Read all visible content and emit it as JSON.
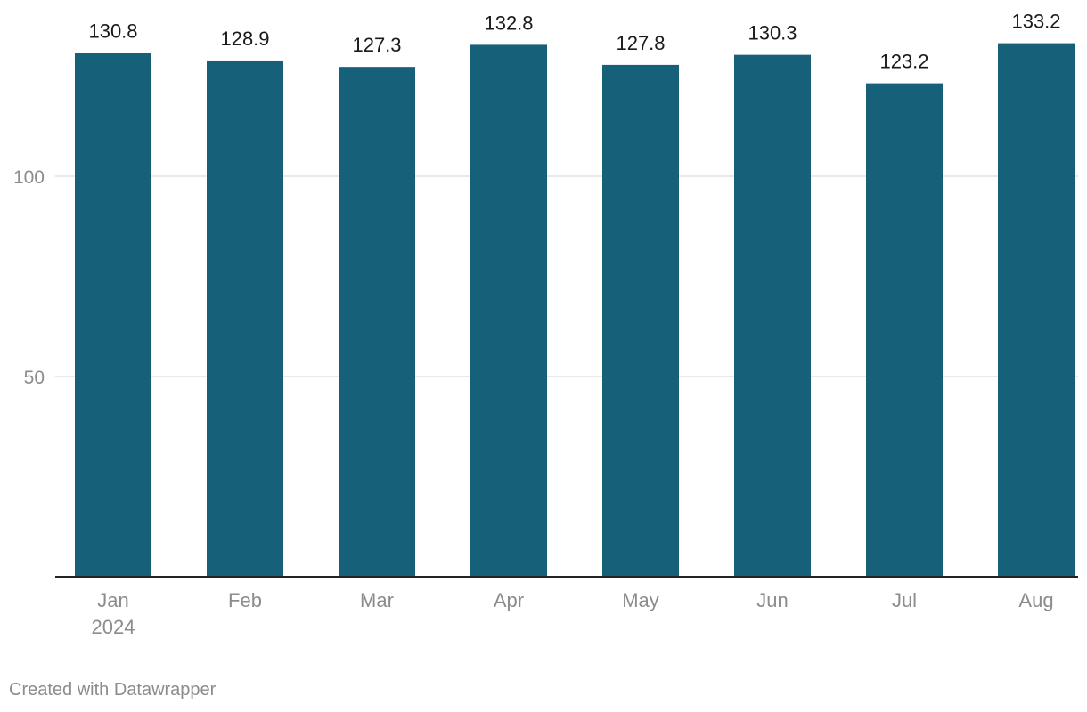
{
  "chart_data": {
    "type": "bar",
    "categories": [
      "Jan",
      "Feb",
      "Mar",
      "Apr",
      "May",
      "Jun",
      "Jul",
      "Aug"
    ],
    "category_sublabels": [
      "2024",
      "",
      "",
      "",
      "",
      "",
      "",
      ""
    ],
    "values": [
      130.8,
      128.9,
      127.3,
      132.8,
      127.8,
      130.3,
      123.2,
      133.2
    ],
    "value_labels": [
      "130.8",
      "128.9",
      "127.3",
      "132.8",
      "127.8",
      "130.3",
      "123.2",
      "133.2"
    ],
    "yticks": [
      50,
      100
    ],
    "ytick_labels": [
      "50",
      "100"
    ],
    "ylim": [
      0,
      145
    ],
    "grid": true,
    "colors": {
      "bar": "#17607a",
      "grid": "#e2e2e2",
      "axis": "#222222",
      "tick_text": "#8c8c8c",
      "label_text": "#1a1a1a"
    }
  },
  "footer": {
    "credit": "Created with Datawrapper"
  }
}
